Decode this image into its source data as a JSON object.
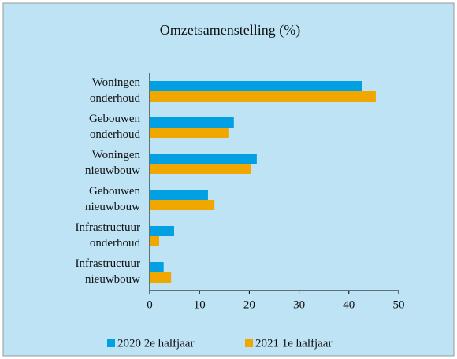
{
  "chart_data": {
    "type": "hbar",
    "title": "Omzetsamenstelling (%)",
    "categories": [
      "Woningen onderhoud",
      "Gebouwen onderhoud",
      "Woningen nieuwbouw",
      "Gebouwen nieuwbouw",
      "Infrastructuur onderhoud",
      "Infrastructuur nieuwbouw"
    ],
    "series": [
      {
        "name": "2020 2e halfjaar",
        "color": "#00a0e3",
        "values": [
          42.6,
          16.9,
          21.5,
          11.7,
          4.9,
          2.8
        ]
      },
      {
        "name": "2021 1e halfjaar",
        "color": "#f0a800",
        "values": [
          45.4,
          15.8,
          20.3,
          13.0,
          1.9,
          4.3
        ]
      }
    ],
    "xlim": [
      0,
      50
    ],
    "xticks": [
      0,
      10,
      20,
      30,
      40,
      50
    ],
    "background": "#bde3f5"
  }
}
